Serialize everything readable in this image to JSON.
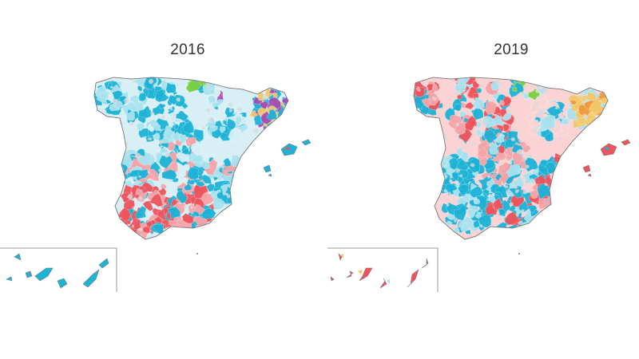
{
  "maps": [
    {
      "year": "2016",
      "colors": {
        "dominant": "#1cb3d6",
        "light": "#a9e2ef",
        "pale": "#d8eff5",
        "secondary": "#f0535b",
        "secondary_light": "#f7a4a8",
        "catalonia": "#f2c86b",
        "catalonia_dark": "#a54fb0",
        "basque": "#7ccf3c",
        "gray": "#d9d9d9"
      }
    },
    {
      "year": "2019",
      "colors": {
        "dominant": "#f0535b",
        "light": "#f7a4a8",
        "pale": "#fbd3d5",
        "secondary": "#1cb3d6",
        "secondary_light": "#a9e2ef",
        "catalonia": "#f2c86b",
        "catalonia_dark": "#ee9a3a",
        "basque": "#7ccf3c",
        "gray": "#d9d9d9"
      }
    }
  ]
}
